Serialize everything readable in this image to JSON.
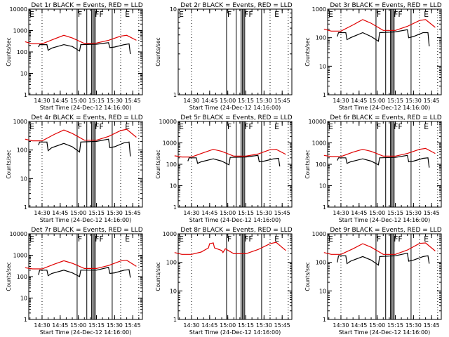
{
  "chart_data": [
    {
      "type": "line",
      "title": "Det 1r BLACK = Events, RED = LLD",
      "xlabel": "Start Time (24-Dec-12 14:16:00)",
      "ylabel": "Counts/sec",
      "yscale": "log",
      "ylim": [
        1,
        10000
      ],
      "yticks": [
        "1",
        "10",
        "100",
        "1000",
        "10000"
      ],
      "xticks": [
        "14:30",
        "14:45",
        "15:00",
        "15:15",
        "15:30",
        "15:45"
      ],
      "markers": [
        "E",
        "F",
        "FF",
        "E"
      ],
      "series": [
        {
          "name": "LLD",
          "color": "#e00000",
          "x": [
            "14:16",
            "14:22",
            "14:30",
            "14:40",
            "14:48",
            "14:55",
            "15:05",
            "15:15",
            "15:25",
            "15:35",
            "15:40",
            "15:48"
          ],
          "values": [
            300,
            240,
            240,
            400,
            600,
            450,
            250,
            260,
            350,
            550,
            600,
            350
          ]
        },
        {
          "name": "Events",
          "color": "#000000",
          "x": [
            "14:27",
            "14:28",
            "14:34",
            "14:35",
            "14:38",
            "14:48",
            "14:55",
            "15:01",
            "15:02",
            "15:15",
            "15:25",
            "15:26",
            "15:30",
            "15:38",
            "15:42",
            "15:43"
          ],
          "values": [
            170,
            220,
            220,
            120,
            150,
            220,
            180,
            110,
            220,
            230,
            270,
            160,
            170,
            220,
            240,
            80
          ]
        }
      ]
    },
    {
      "type": "line",
      "title": "Det 2r BLACK = Events, RED = LLD",
      "xlabel": "Start Time (24-Dec-12 14:16:00)",
      "ylabel": "Counts/sec",
      "yscale": "log",
      "ylim": [
        1,
        10
      ],
      "yticks": [
        "1",
        "10"
      ],
      "xticks": [
        "14:30",
        "14:45",
        "15:00",
        "15:15",
        "15:30",
        "15:45"
      ],
      "markers": [
        "E",
        "F",
        "FF",
        "E"
      ],
      "series": []
    },
    {
      "type": "line",
      "title": "Det 3r BLACK = Events, RED = LLD",
      "xlabel": "Start Time (24-Dec-12 14:16:00)",
      "ylabel": "Counts/sec",
      "yscale": "log",
      "ylim": [
        1,
        1000
      ],
      "yticks": [
        "1",
        "10",
        "100",
        "1000"
      ],
      "xticks": [
        "14:30",
        "14:45",
        "15:00",
        "15:15",
        "15:30",
        "15:45"
      ],
      "markers": [
        "E",
        "F",
        "FF",
        "E"
      ],
      "series": [
        {
          "name": "LLD",
          "color": "#e00000",
          "x": [
            "14:16",
            "14:22",
            "14:30",
            "14:40",
            "14:48",
            "14:55",
            "15:05",
            "15:15",
            "15:25",
            "15:35",
            "15:40",
            "15:48"
          ],
          "values": [
            200,
            170,
            170,
            280,
            430,
            320,
            180,
            180,
            250,
            400,
            430,
            230
          ]
        },
        {
          "name": "Events",
          "color": "#000000",
          "x": [
            "14:27",
            "14:28",
            "14:34",
            "14:35",
            "14:38",
            "14:48",
            "14:55",
            "15:01",
            "15:02",
            "15:15",
            "15:25",
            "15:26",
            "15:30",
            "15:38",
            "15:42",
            "15:43"
          ],
          "values": [
            110,
            150,
            150,
            85,
            100,
            150,
            110,
            75,
            150,
            160,
            190,
            100,
            110,
            150,
            150,
            50
          ]
        }
      ]
    },
    {
      "type": "line",
      "title": "Det 4r BLACK = Events, RED = LLD",
      "xlabel": "Start Time (24-Dec-12 14:16:00)",
      "ylabel": "Counts/sec",
      "yscale": "log",
      "ylim": [
        1,
        1000
      ],
      "yticks": [
        "1",
        "10",
        "100",
        "1000"
      ],
      "xticks": [
        "14:30",
        "14:45",
        "15:00",
        "15:15",
        "15:30",
        "15:45"
      ],
      "markers": [
        "E",
        "F",
        "FF",
        "E"
      ],
      "series": [
        {
          "name": "LLD",
          "color": "#e00000",
          "x": [
            "14:16",
            "14:22",
            "14:30",
            "14:40",
            "14:48",
            "14:55",
            "15:05",
            "15:15",
            "15:25",
            "15:35",
            "15:40",
            "15:48"
          ],
          "values": [
            240,
            210,
            210,
            350,
            500,
            380,
            220,
            220,
            300,
            480,
            530,
            280
          ]
        },
        {
          "name": "Events",
          "color": "#000000",
          "x": [
            "14:27",
            "14:28",
            "14:34",
            "14:35",
            "14:38",
            "14:48",
            "14:55",
            "15:01",
            "15:02",
            "15:15",
            "15:25",
            "15:26",
            "15:30",
            "15:38",
            "15:42",
            "15:43"
          ],
          "values": [
            150,
            190,
            190,
            95,
            120,
            170,
            130,
            85,
            190,
            200,
            240,
            120,
            130,
            180,
            190,
            60
          ]
        }
      ]
    },
    {
      "type": "line",
      "title": "Det 5r BLACK = Events, RED = LLD",
      "xlabel": "Start Time (24-Dec-12 14:16:00)",
      "ylabel": "Counts/sec",
      "yscale": "log",
      "ylim": [
        1,
        10000
      ],
      "yticks": [
        "1",
        "10",
        "100",
        "1000",
        "10000"
      ],
      "xticks": [
        "14:30",
        "14:45",
        "15:00",
        "15:15",
        "15:30",
        "15:45"
      ],
      "markers": [
        "E",
        "F",
        "FF",
        "E"
      ],
      "series": [
        {
          "name": "LLD",
          "color": "#e00000",
          "x": [
            "14:16",
            "14:22",
            "14:30",
            "14:40",
            "14:48",
            "14:55",
            "15:05",
            "15:15",
            "15:25",
            "15:35",
            "15:40",
            "15:48"
          ],
          "values": [
            250,
            220,
            220,
            350,
            500,
            400,
            240,
            240,
            300,
            480,
            500,
            290
          ]
        },
        {
          "name": "Events",
          "color": "#000000",
          "x": [
            "14:27",
            "14:28",
            "14:34",
            "14:35",
            "14:38",
            "14:48",
            "14:55",
            "15:01",
            "15:02",
            "15:15",
            "15:25",
            "15:26",
            "15:30",
            "15:38",
            "15:42",
            "15:43"
          ],
          "values": [
            140,
            200,
            200,
            110,
            130,
            180,
            140,
            95,
            210,
            220,
            260,
            130,
            140,
            180,
            190,
            80
          ]
        }
      ]
    },
    {
      "type": "line",
      "title": "Det 6r BLACK = Events, RED = LLD",
      "xlabel": "Start Time (24-Dec-12 14:16:00)",
      "ylabel": "Counts/sec",
      "yscale": "log",
      "ylim": [
        1,
        10000
      ],
      "yticks": [
        "1",
        "10",
        "100",
        "1000",
        "10000"
      ],
      "xticks": [
        "14:30",
        "14:45",
        "15:00",
        "15:15",
        "15:30",
        "15:45"
      ],
      "markers": [
        "E",
        "F",
        "FF",
        "E"
      ],
      "series": [
        {
          "name": "LLD",
          "color": "#e00000",
          "x": [
            "14:16",
            "14:22",
            "14:30",
            "14:40",
            "14:48",
            "14:55",
            "15:05",
            "15:15",
            "15:25",
            "15:35",
            "15:40",
            "15:48"
          ],
          "values": [
            260,
            230,
            230,
            370,
            500,
            400,
            240,
            240,
            320,
            500,
            550,
            320
          ]
        },
        {
          "name": "Events",
          "color": "#000000",
          "x": [
            "14:27",
            "14:28",
            "14:34",
            "14:35",
            "14:38",
            "14:48",
            "14:55",
            "15:01",
            "15:02",
            "15:15",
            "15:25",
            "15:26",
            "15:30",
            "15:38",
            "15:42",
            "15:43"
          ],
          "values": [
            150,
            200,
            200,
            110,
            130,
            180,
            140,
            95,
            200,
            210,
            260,
            130,
            140,
            190,
            200,
            70
          ]
        }
      ]
    },
    {
      "type": "line",
      "title": "Det 7r BLACK = Events, RED = LLD",
      "xlabel": "Start Time (24-Dec-12 14:16:00)",
      "ylabel": "Counts/sec",
      "yscale": "log",
      "ylim": [
        1,
        10000
      ],
      "yticks": [
        "1",
        "10",
        "100",
        "1000",
        "10000"
      ],
      "xticks": [
        "14:30",
        "14:45",
        "15:00",
        "15:15",
        "15:30",
        "15:45"
      ],
      "markers": [
        "E",
        "F",
        "FF",
        "E"
      ],
      "series": [
        {
          "name": "LLD",
          "color": "#e00000",
          "x": [
            "14:16",
            "14:22",
            "14:30",
            "14:40",
            "14:48",
            "14:55",
            "15:05",
            "15:15",
            "15:25",
            "15:35",
            "15:40",
            "15:48"
          ],
          "values": [
            260,
            230,
            230,
            380,
            550,
            420,
            240,
            240,
            330,
            540,
            580,
            300
          ]
        },
        {
          "name": "Events",
          "color": "#000000",
          "x": [
            "14:27",
            "14:28",
            "14:34",
            "14:35",
            "14:38",
            "14:48",
            "14:55",
            "15:01",
            "15:02",
            "15:15",
            "15:25",
            "15:26",
            "15:30",
            "15:38",
            "15:42",
            "15:43"
          ],
          "values": [
            120,
            200,
            200,
            110,
            140,
            200,
            150,
            100,
            200,
            200,
            270,
            140,
            150,
            200,
            210,
            90
          ]
        }
      ]
    },
    {
      "type": "line",
      "title": "Det 8r BLACK = Events, RED = LLD",
      "xlabel": "Start Time (24-Dec-12 14:16:00)",
      "ylabel": "Counts/sec",
      "yscale": "log",
      "ylim": [
        1,
        1000
      ],
      "yticks": [
        "1",
        "10",
        "100",
        "1000"
      ],
      "xticks": [
        "14:30",
        "14:45",
        "15:00",
        "15:15",
        "15:30",
        "15:45"
      ],
      "markers": [
        "E",
        "F",
        "FF",
        "E"
      ],
      "series": [
        {
          "name": "LLD",
          "color": "#e00000",
          "x": [
            "14:16",
            "14:22",
            "14:30",
            "14:38",
            "14:44",
            "14:45",
            "14:48",
            "14:49",
            "14:55",
            "14:56",
            "14:58",
            "15:05",
            "15:15",
            "15:25",
            "15:35",
            "15:40",
            "15:48"
          ],
          "values": [
            220,
            190,
            190,
            230,
            320,
            450,
            480,
            320,
            260,
            220,
            300,
            200,
            200,
            280,
            450,
            500,
            260
          ]
        }
      ]
    },
    {
      "type": "line",
      "title": "Det 9r BLACK = Events, RED = LLD",
      "xlabel": "Start Time (24-Dec-12 14:16:00)",
      "ylabel": "Counts/sec",
      "yscale": "log",
      "ylim": [
        1,
        1000
      ],
      "yticks": [
        "1",
        "10",
        "100",
        "1000"
      ],
      "xticks": [
        "14:30",
        "14:45",
        "15:00",
        "15:15",
        "15:30",
        "15:45"
      ],
      "markers": [
        "E",
        "F",
        "FF",
        "E"
      ],
      "series": [
        {
          "name": "LLD",
          "color": "#e00000",
          "x": [
            "14:16",
            "14:22",
            "14:30",
            "14:40",
            "14:48",
            "14:55",
            "15:05",
            "15:15",
            "15:25",
            "15:35",
            "15:40",
            "15:48"
          ],
          "values": [
            220,
            190,
            190,
            300,
            450,
            340,
            190,
            190,
            270,
            460,
            480,
            250
          ]
        },
        {
          "name": "Events",
          "color": "#000000",
          "x": [
            "14:27",
            "14:28",
            "14:34",
            "14:35",
            "14:38",
            "14:48",
            "14:55",
            "15:01",
            "15:02",
            "15:15",
            "15:25",
            "15:26",
            "15:30",
            "15:38",
            "15:42",
            "15:43"
          ],
          "values": [
            100,
            170,
            170,
            90,
            110,
            160,
            120,
            80,
            160,
            170,
            210,
            110,
            120,
            160,
            170,
            90
          ]
        }
      ]
    }
  ],
  "time_axis": {
    "range_min": "14:19",
    "range_max": "15:53",
    "dotted_lines": [
      "14:30",
      "15:35",
      "15:50"
    ],
    "solid_lines": [
      "14:59",
      "15:07",
      "15:11",
      "15:12",
      "15:13",
      "15:14",
      "15:28"
    ]
  }
}
